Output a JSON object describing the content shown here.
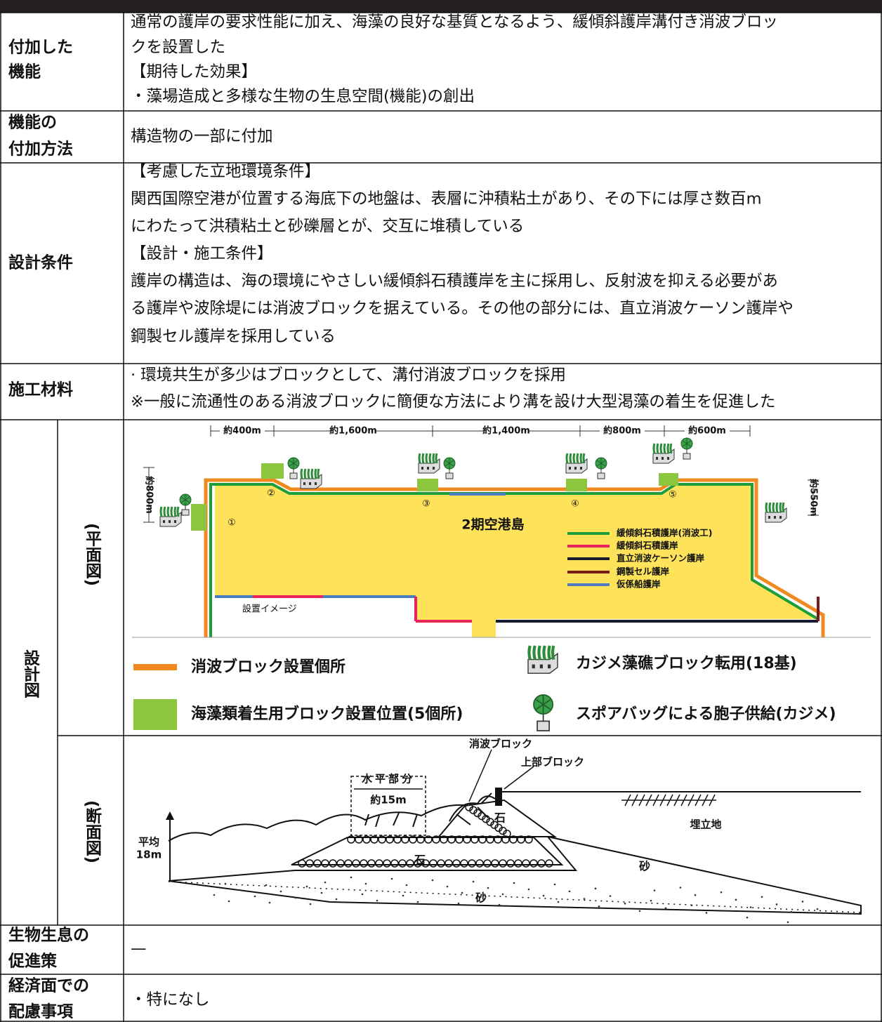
{
  "table": {
    "rows": [
      {
        "label": [
          "付加した",
          "機能"
        ],
        "content": [
          "通常の護岸の要求性能に加え、海藻の良好な基質となるよう、緩傾斜護岸溝付き消波ブロッ",
          "クを設置した",
          "【期待した効果】",
          "・藻場造成と多様な生物の生息空間(機能)の創出"
        ]
      },
      {
        "label": [
          "機能の",
          "付加方法"
        ],
        "content": [
          "構造物の一部に付加"
        ]
      },
      {
        "label": [
          "設計条件"
        ],
        "content": [
          "【考慮した立地環境条件】",
          "関西国際空港が位置する海底下の地盤は、表層に沖積粘土があり、その下には厚さ数百m",
          "にわたって洪積粘土と砂礫層とが、交互に堆積している",
          "【設計・施工条件】",
          "護岸の構造は、海の環境にやさしい緩傾斜石積護岸を主に採用し、反射波を抑える必要があ",
          "る護岸や波除堤には消波ブロックを据えている。その他の部分には、直立消波ケーソン護岸や",
          "鋼製セル護岸を採用している"
        ]
      },
      {
        "label": [
          "施工材料"
        ],
        "content": [
          "· 環境共生が多少はブロックとして、溝付消波ブロックを採用",
          "※一般に流通性のある消波ブロックに簡便な方法により溝を設け大型渇藻の着生を促進した"
        ]
      },
      {
        "label": [
          "設計図"
        ],
        "plan": {
          "label": "(平面図)",
          "distances": [
            "約400m",
            "約1,600m",
            "約1,400m",
            "約800m",
            "約600m"
          ],
          "heights": [
            "約800m",
            "約550m"
          ],
          "markers": [
            "①",
            "②",
            "③",
            "④",
            "⑤"
          ],
          "island": "2期空港島",
          "shore_types": [
            "緩傾斜石積護岸(消波工)",
            "緩傾斜石積護岸",
            "直立消波ケーソン護岸",
            "鋼製セル護岸",
            "仮係船護岸"
          ],
          "note": "設置イメージ",
          "legend": [
            "消波ブロック設置個所",
            "海藻類着生用ブロック設置位置(5個所)",
            "カジメ藻礁ブロック転用(18基)",
            "スポアバッグによる胞子供給(カジメ)"
          ]
        },
        "section": {
          "label": "(断面図)",
          "wave_block": "消波ブロック",
          "top_block": "上部ブロック",
          "flat_part": "水平部分",
          "flat_width": "約15m",
          "stone": "石",
          "landfill": "埋立地",
          "sand": "砂",
          "depth": [
            "平均",
            "18m"
          ]
        }
      },
      {
        "label": [
          "生物生息の",
          "促進策"
        ],
        "content": [
          "—"
        ]
      },
      {
        "label": [
          "経済面での",
          "配慮事項"
        ],
        "content": [
          "・特になし"
        ]
      }
    ]
  }
}
